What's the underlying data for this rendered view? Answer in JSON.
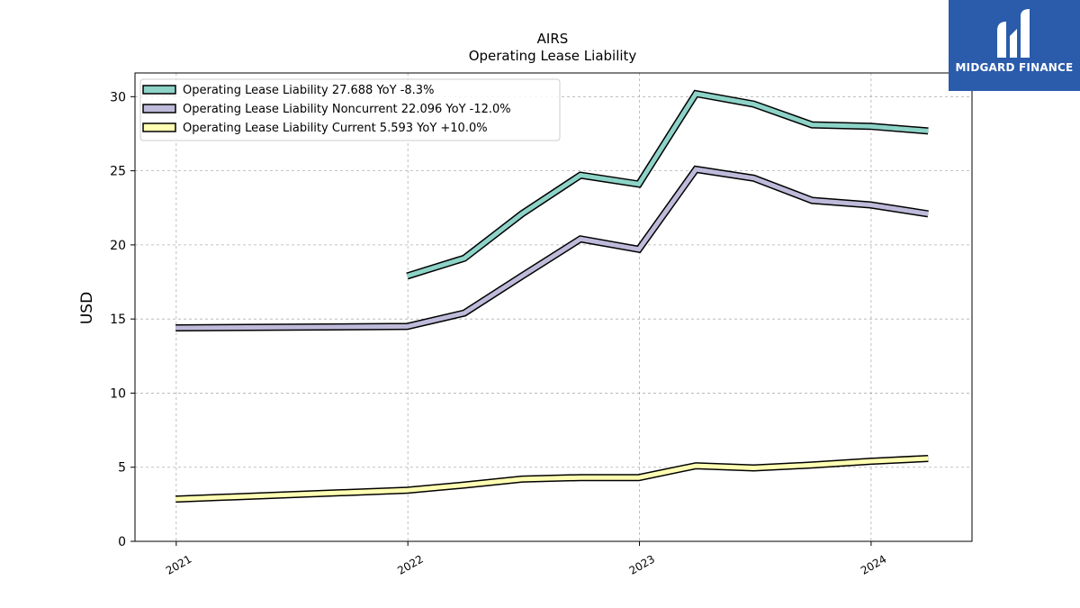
{
  "chart_data": {
    "type": "line",
    "title": "AIRS",
    "subtitle": "Operating Lease Liability",
    "ylabel": "USD",
    "xlabel": "",
    "ylim": [
      0,
      31.6
    ],
    "xlim": [
      "2020-10-28",
      "2024-06-08"
    ],
    "yticks": [
      0,
      5,
      10,
      15,
      20,
      25,
      30
    ],
    "xticks": [
      "2021-01-01",
      "2022-01-01",
      "2023-01-01",
      "2024-01-01"
    ],
    "xtick_labels": [
      "2021",
      "2022",
      "2023",
      "2024"
    ],
    "grid": true,
    "legend_position": "top-left",
    "series": [
      {
        "name": "Operating Lease Liability",
        "legend_label": "Operating Lease Liability  27.688 YoY -8.3%",
        "color": "#8dd3c7",
        "points": [
          [
            "2021-12-31",
            17.9
          ],
          [
            "2022-03-31",
            19.1
          ],
          [
            "2022-06-30",
            22.1
          ],
          [
            "2022-09-30",
            24.7
          ],
          [
            "2022-12-31",
            24.1
          ],
          [
            "2023-03-31",
            30.2
          ],
          [
            "2023-06-30",
            29.5
          ],
          [
            "2023-09-30",
            28.1
          ],
          [
            "2023-12-31",
            28.0
          ],
          [
            "2024-03-31",
            27.688
          ]
        ]
      },
      {
        "name": "Operating Lease Liability Noncurrent",
        "legend_label": "Operating Lease Liability Noncurrent  22.096 YoY -12.0%",
        "color": "#bebada",
        "points": [
          [
            "2020-12-31",
            14.4
          ],
          [
            "2021-12-31",
            14.5
          ],
          [
            "2022-03-31",
            15.4
          ],
          [
            "2022-06-30",
            17.9
          ],
          [
            "2022-09-30",
            20.4
          ],
          [
            "2022-12-31",
            19.7
          ],
          [
            "2023-03-31",
            25.1
          ],
          [
            "2023-06-30",
            24.5
          ],
          [
            "2023-09-30",
            23.0
          ],
          [
            "2023-12-31",
            22.7
          ],
          [
            "2024-03-31",
            22.096
          ]
        ]
      },
      {
        "name": "Operating Lease Liability Current",
        "legend_label": "Operating Lease Liability Current  5.593 YoY +10.0%",
        "color": "#ffffb3",
        "points": [
          [
            "2020-12-31",
            2.85
          ],
          [
            "2021-12-31",
            3.45
          ],
          [
            "2022-03-31",
            3.8
          ],
          [
            "2022-06-30",
            4.2
          ],
          [
            "2022-09-30",
            4.3
          ],
          [
            "2022-12-31",
            4.3
          ],
          [
            "2023-03-31",
            5.1
          ],
          [
            "2023-06-30",
            4.95
          ],
          [
            "2023-09-30",
            5.15
          ],
          [
            "2023-12-31",
            5.4
          ],
          [
            "2024-03-31",
            5.593
          ]
        ]
      }
    ]
  },
  "brand": {
    "name": "MIDGARD FINANCE",
    "background": "#2b5bab",
    "text_color": "#ffffff"
  }
}
